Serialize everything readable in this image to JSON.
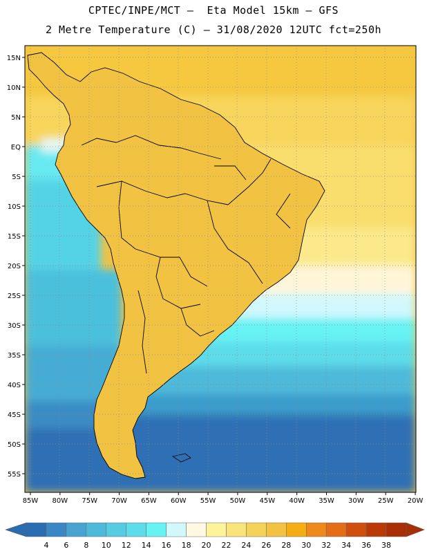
{
  "header": {
    "line1": "CPTEC/INPE/MCT –  Eta Model 15km – GFS",
    "line2": "2 Metre Temperature (C) – 31/08/2020 12UTC fct=250h"
  },
  "map": {
    "lat_labels": [
      "15N",
      "10N",
      "5N",
      "EQ",
      "5S",
      "10S",
      "15S",
      "20S",
      "25S",
      "30S",
      "35S",
      "40S",
      "45S",
      "50S",
      "55S"
    ],
    "lon_labels": [
      "85W",
      "80W",
      "75W",
      "70W",
      "65W",
      "60W",
      "55W",
      "50W",
      "45W",
      "40W",
      "35W",
      "30W",
      "25W",
      "20W"
    ],
    "gridlines": true
  },
  "colorbar": {
    "labels": [
      "4",
      "6",
      "8",
      "10",
      "12",
      "14",
      "16",
      "18",
      "20",
      "22",
      "24",
      "26",
      "28",
      "30",
      "32",
      "34",
      "36",
      "38"
    ],
    "colors": [
      "#2a6cb0",
      "#3b87c3",
      "#48a3d0",
      "#4fb9d9",
      "#57cbe1",
      "#5ddcea",
      "#67f2f4",
      "#d0f8fd",
      "#fff8e3",
      "#fdf39a",
      "#f9e47b",
      "#f5d35b",
      "#f2c243",
      "#f4ae13",
      "#ee8a1c",
      "#e46d18",
      "#cf4f0c",
      "#b93a06",
      "#a82f05"
    ]
  }
}
